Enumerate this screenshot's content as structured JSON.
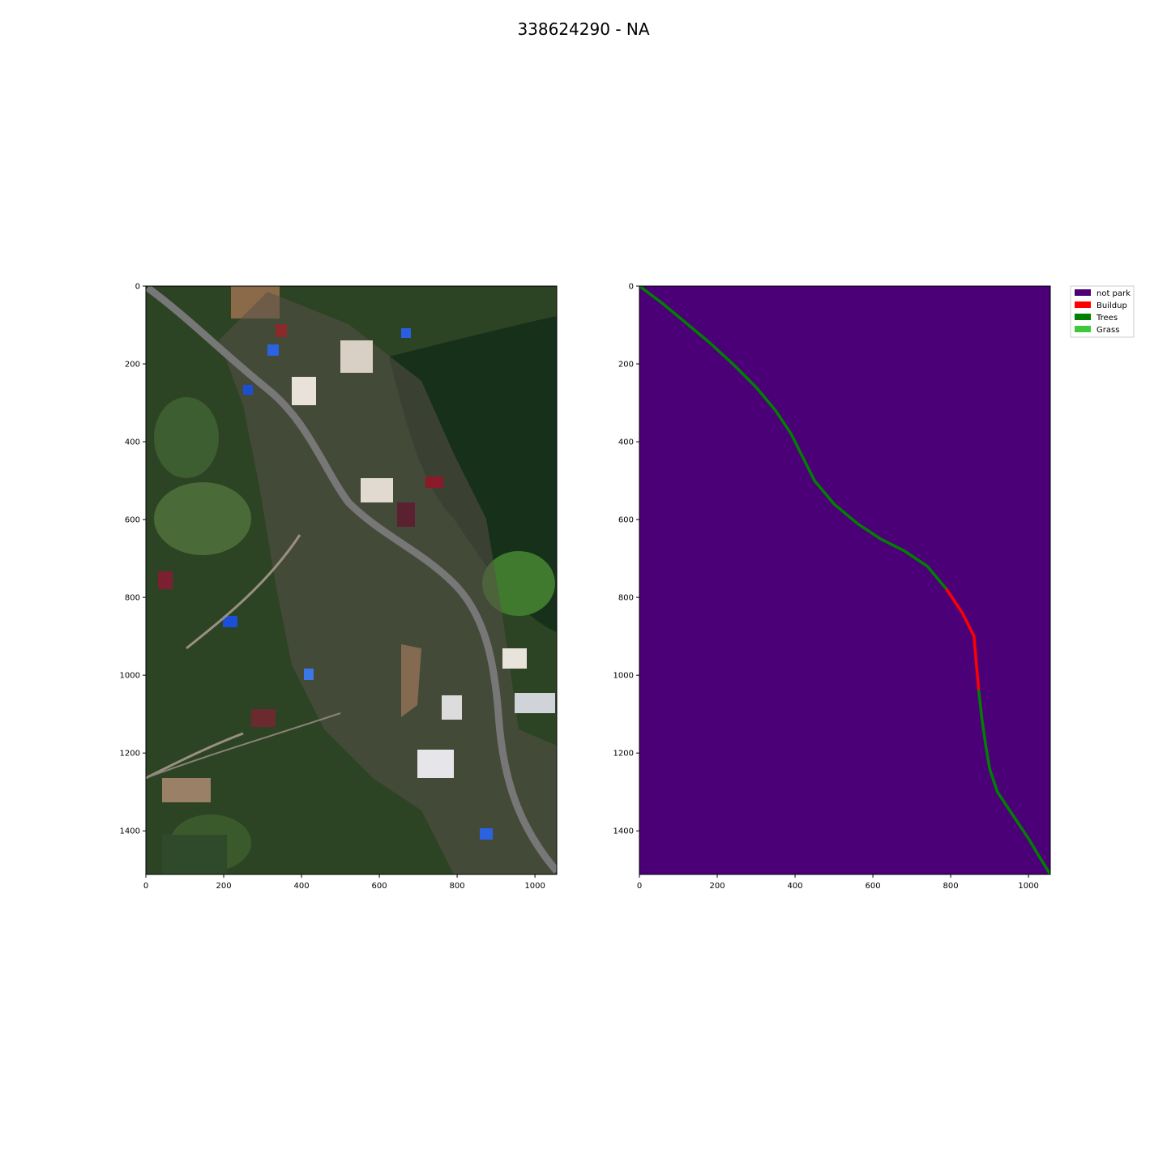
{
  "figure": {
    "title": "338624290 - NA"
  },
  "chart_data": [
    {
      "type": "heatmap",
      "panel": "satellite-image",
      "content": "aerial RGB image",
      "xlim": [
        0,
        1056
      ],
      "ylim": [
        1512,
        0
      ],
      "xticks": [
        0,
        200,
        400,
        600,
        800,
        1000
      ],
      "yticks": [
        0,
        200,
        400,
        600,
        800,
        1000,
        1200,
        1400
      ],
      "colors": {
        "vegetation": "#1f3a1a",
        "road": "#6b6b6b"
      }
    },
    {
      "type": "heatmap",
      "panel": "park-mask",
      "xlim": [
        0,
        1056
      ],
      "ylim": [
        1512,
        0
      ],
      "xticks": [
        0,
        200,
        400,
        600,
        800,
        1000
      ],
      "yticks": [
        0,
        200,
        400,
        600,
        800,
        1000,
        1200,
        1400
      ],
      "background_class": "not park",
      "legend": [
        {
          "label": "not park",
          "color": "#4b0078"
        },
        {
          "label": "Buildup",
          "color": "#ff0000"
        },
        {
          "label": "Trees",
          "color": "#008000"
        },
        {
          "label": "Grass",
          "color": "#3ec83e"
        }
      ],
      "legend_position": "outside upper right",
      "road_path": [
        [
          0,
          0
        ],
        [
          60,
          45
        ],
        [
          120,
          95
        ],
        [
          180,
          145
        ],
        [
          240,
          200
        ],
        [
          300,
          260
        ],
        [
          350,
          320
        ],
        [
          390,
          380
        ],
        [
          420,
          440
        ],
        [
          450,
          500
        ],
        [
          500,
          560
        ],
        [
          560,
          610
        ],
        [
          620,
          650
        ],
        [
          680,
          680
        ],
        [
          740,
          720
        ],
        [
          790,
          780
        ],
        [
          830,
          840
        ],
        [
          860,
          900
        ],
        [
          865,
          960
        ],
        [
          872,
          1040
        ],
        [
          880,
          1110
        ],
        [
          890,
          1180
        ],
        [
          900,
          1240
        ],
        [
          920,
          1300
        ],
        [
          960,
          1360
        ],
        [
          1000,
          1420
        ],
        [
          1030,
          1470
        ],
        [
          1056,
          1512
        ]
      ],
      "road_segments": [
        {
          "from": 0,
          "to": 15,
          "class": "Trees"
        },
        {
          "from": 15,
          "to": 19,
          "class": "Buildup"
        },
        {
          "from": 19,
          "to": 27,
          "class": "Trees"
        }
      ]
    }
  ]
}
